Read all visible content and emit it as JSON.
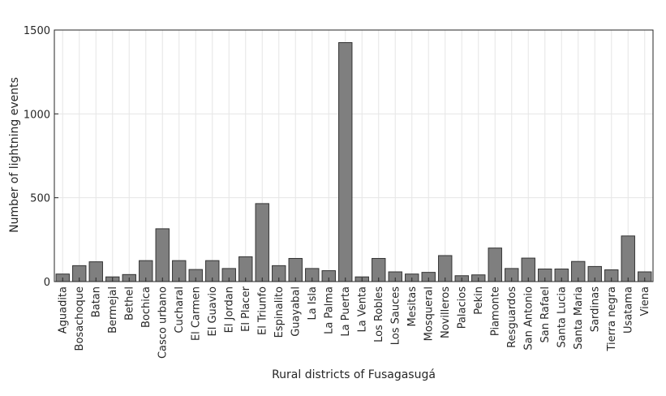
{
  "chart_data": {
    "type": "bar",
    "title": "",
    "xlabel": "Rural districts of Fusagasugá",
    "ylabel": "Number of lightning events",
    "ylim": [
      0,
      1500
    ],
    "yticks": [
      0,
      500,
      1000,
      1500
    ],
    "grid": true,
    "legend": "none",
    "bar_color": "#7f7f7f",
    "bar_edge_color": "#333333",
    "categories": [
      "Aguadita",
      "Bosachoque",
      "Batan",
      "Bermejal",
      "Bethel",
      "Bochica",
      "Casco urbano",
      "Cucharal",
      "El Carmen",
      "El Guavio",
      "El Jordan",
      "El Placer",
      "El Triunfo",
      "Espinalito",
      "Guayabal",
      "La Isla",
      "La Palma",
      "La Puerta",
      "La Venta",
      "Los Robles",
      "Los Sauces",
      "Mesitas",
      "Mosqueral",
      "Novilleros",
      "Palacios",
      "Pekin",
      "Piamonte",
      "Resguardos",
      "San Antonio",
      "San Rafael",
      "Santa Lucia",
      "Santa Maria",
      "Sardinas",
      "Tierra negra",
      "Usatama",
      "Viena"
    ],
    "values": [
      45,
      95,
      118,
      28,
      42,
      125,
      315,
      125,
      72,
      125,
      78,
      148,
      465,
      95,
      138,
      78,
      65,
      1425,
      28,
      138,
      58,
      45,
      55,
      155,
      35,
      40,
      200,
      78,
      140,
      75,
      75,
      120,
      90,
      70,
      272,
      58
    ]
  }
}
